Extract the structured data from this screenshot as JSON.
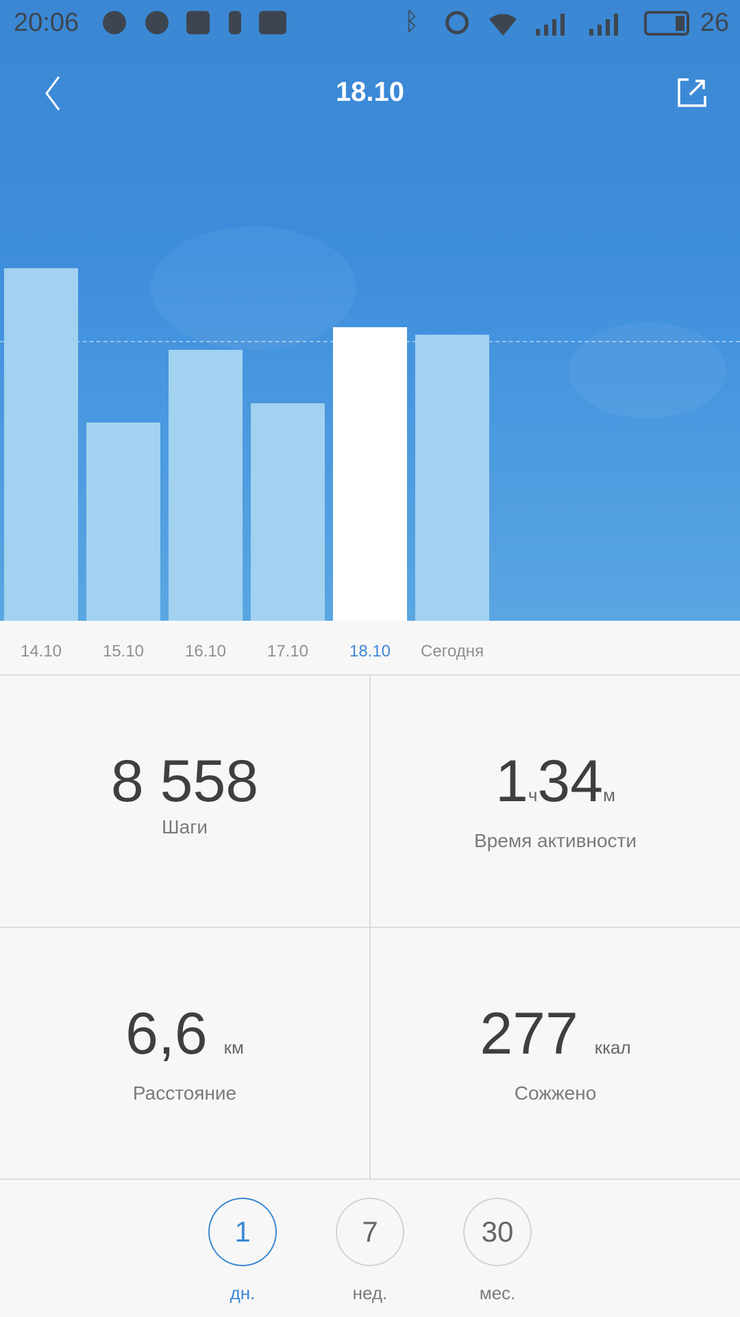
{
  "status_bar": {
    "time": "20:06",
    "battery": "26",
    "icons": [
      "chat-bubble-icon",
      "messenger-icon",
      "facebook-icon",
      "battery-alert-icon",
      "image-icon",
      "bluetooth-icon",
      "alarm-icon",
      "wifi-icon",
      "signal-3g-icon",
      "signal-icon",
      "battery-icon"
    ]
  },
  "header": {
    "title": "18.10",
    "back_icon": "chevron-left-icon",
    "share_icon": "share-icon"
  },
  "colors": {
    "accent": "#3b87d3",
    "bar": "#a2d2f0",
    "bar_selected": "#ffffff"
  },
  "chart_data": {
    "type": "bar",
    "categories": [
      "14.10",
      "15.10",
      "16.10",
      "17.10",
      "18.10",
      "Сегодня"
    ],
    "values": [
      10280,
      5790,
      7900,
      6350,
      8558,
      8340
    ],
    "selected": "18.10",
    "goal_line": 8160,
    "ylim": [
      0,
      18100
    ],
    "grid": false
  },
  "stats": {
    "steps": {
      "value": "8 558",
      "label": "Шаги"
    },
    "active_time": {
      "hours": "1",
      "hours_unit": "ч",
      "minutes": "34",
      "minutes_unit": "м",
      "label": "Время активности"
    },
    "distance": {
      "value": "6,6",
      "unit": "км",
      "label": "Расстояние"
    },
    "calories": {
      "value": "277",
      "unit": "ккал",
      "label": "Сожжено"
    }
  },
  "range": [
    {
      "value": "1",
      "label": "дн.",
      "selected": true
    },
    {
      "value": "7",
      "label": "нед.",
      "selected": false
    },
    {
      "value": "30",
      "label": "мес.",
      "selected": false
    }
  ]
}
